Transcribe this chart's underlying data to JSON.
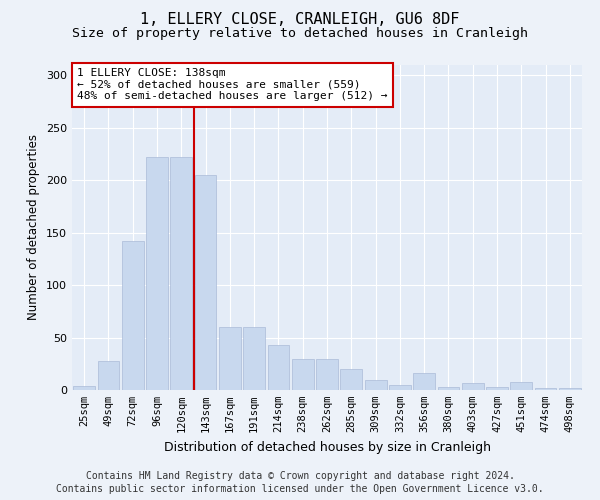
{
  "title": "1, ELLERY CLOSE, CRANLEIGH, GU6 8DF",
  "subtitle": "Size of property relative to detached houses in Cranleigh",
  "xlabel": "Distribution of detached houses by size in Cranleigh",
  "ylabel": "Number of detached properties",
  "bar_color": "#c8d8ee",
  "bar_edge_color": "#aabbd8",
  "categories": [
    "25sqm",
    "49sqm",
    "72sqm",
    "96sqm",
    "120sqm",
    "143sqm",
    "167sqm",
    "191sqm",
    "214sqm",
    "238sqm",
    "262sqm",
    "285sqm",
    "309sqm",
    "332sqm",
    "356sqm",
    "380sqm",
    "403sqm",
    "427sqm",
    "451sqm",
    "474sqm",
    "498sqm"
  ],
  "values": [
    4,
    28,
    142,
    222,
    222,
    205,
    60,
    60,
    43,
    30,
    30,
    20,
    10,
    5,
    16,
    3,
    7,
    3,
    8,
    2,
    2
  ],
  "ylim": [
    0,
    310
  ],
  "yticks": [
    0,
    50,
    100,
    150,
    200,
    250,
    300
  ],
  "vline_x": 4.52,
  "vline_color": "#cc0000",
  "annotation_text": "1 ELLERY CLOSE: 138sqm\n← 52% of detached houses are smaller (559)\n48% of semi-detached houses are larger (512) →",
  "footer_line1": "Contains HM Land Registry data © Crown copyright and database right 2024.",
  "footer_line2": "Contains public sector information licensed under the Open Government Licence v3.0.",
  "bg_color": "#edf2f9",
  "plot_bg_color": "#e4ecf7",
  "grid_color": "#ffffff",
  "title_fontsize": 11,
  "subtitle_fontsize": 9.5,
  "footer_fontsize": 7,
  "annotation_fontsize": 8,
  "ylabel_fontsize": 8.5,
  "xlabel_fontsize": 9,
  "tick_fontsize": 7.5
}
